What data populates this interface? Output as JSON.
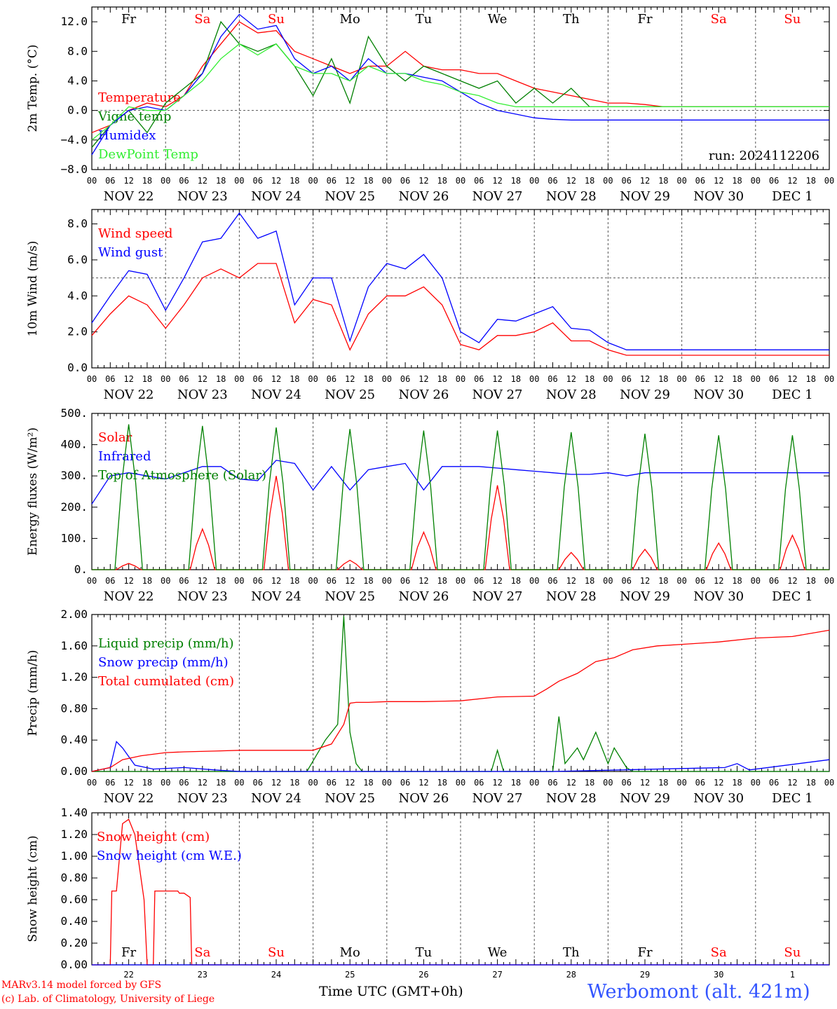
{
  "colors": {
    "red": "#ff0000",
    "green": "#008000",
    "blue": "#0000ff",
    "lightgreen": "#33ee33",
    "dowWeekend": "#ff0000",
    "dowWeekday": "#000000"
  },
  "days_of_week": [
    "Fr",
    "Sa",
    "Su",
    "Mo",
    "Tu",
    "We",
    "Th",
    "Fr",
    "Sa",
    "Su"
  ],
  "weekend_flags": [
    false,
    true,
    true,
    false,
    false,
    false,
    false,
    false,
    true,
    true
  ],
  "date_labels": [
    "NOV 22",
    "NOV 23",
    "NOV 24",
    "NOV 25",
    "NOV 26",
    "NOV 27",
    "NOV 28",
    "NOV 29",
    "NOV 30",
    "DEC  1"
  ],
  "hour_ticks": [
    "00",
    "06",
    "12",
    "18"
  ],
  "last_hour_tick": "00",
  "bottom_day_numbers": [
    "22",
    "23",
    "24",
    "25",
    "26",
    "27",
    "28",
    "29",
    "30",
    "1"
  ],
  "run_label": "run: 2024112206",
  "footer": {
    "model": "MARv3.14 model forced by GFS",
    "lab": "(c) Lab. of Climatology, University of Liege",
    "xaxis": "Time UTC (GMT+0h)",
    "station": "Werbomont (alt. 421m)"
  },
  "chart_data": [
    {
      "type": "line",
      "ylabel": "2m Temp. (°C)",
      "ylim": [
        -8,
        14
      ],
      "yticks": [
        "12.0",
        "8.0",
        "4.0",
        "0.0",
        "−4.0",
        "−8.0"
      ],
      "ytick_values": [
        12,
        8,
        4,
        0,
        -4,
        -8
      ],
      "reference_line": 0,
      "x_unit": "hours since 2024-11-22 00 UTC",
      "series": [
        {
          "name": "Temperature",
          "color": "red",
          "x": [
            0,
            6,
            12,
            18,
            24,
            30,
            36,
            42,
            48,
            54,
            60,
            66,
            72,
            78,
            84,
            90,
            96,
            102,
            108,
            114,
            120,
            126,
            132,
            138,
            144,
            150,
            156,
            162,
            168,
            174,
            180,
            186,
            192,
            198,
            204,
            210,
            216,
            222,
            228,
            234,
            240
          ],
          "values": [
            -3,
            -2,
            0,
            1,
            0.5,
            2,
            6,
            9,
            12,
            10.5,
            10.8,
            8,
            7,
            6,
            5,
            6,
            6,
            8,
            6,
            5.5,
            5.5,
            5,
            5,
            4,
            3,
            2.5,
            2,
            1.5,
            1,
            1,
            0.8,
            0.5,
            0.5,
            0.5,
            0.5,
            0.5,
            0.5,
            0.5,
            0.5,
            0.5,
            0.5
          ]
        },
        {
          "name": "Vigne temp",
          "color": "green",
          "x": [
            0,
            6,
            12,
            18,
            24,
            30,
            36,
            42,
            48,
            54,
            60,
            66,
            72,
            78,
            84,
            90,
            96,
            102,
            108,
            114,
            120,
            126,
            132,
            138,
            144,
            150,
            156,
            162,
            168,
            174,
            180,
            186,
            192,
            198,
            204,
            210,
            216,
            222,
            228,
            234,
            240
          ],
          "values": [
            -5,
            -2,
            0,
            -3,
            1,
            3,
            5,
            12,
            9,
            8,
            9,
            6,
            2,
            7,
            1,
            10,
            6,
            4,
            6,
            5,
            4,
            3,
            4,
            1,
            3,
            1,
            3,
            0.5,
            0.5,
            0.5,
            0.5,
            0.5,
            0.5,
            0.5,
            0.5,
            0.5,
            0.5,
            0.5,
            0.5,
            0.5,
            0.5
          ]
        },
        {
          "name": "Humidex",
          "color": "blue",
          "x": [
            0,
            6,
            12,
            18,
            24,
            30,
            36,
            42,
            48,
            54,
            60,
            66,
            72,
            78,
            84,
            90,
            96,
            102,
            108,
            114,
            120,
            126,
            132,
            138,
            144,
            150,
            156,
            162,
            168,
            174,
            180,
            186,
            192,
            198,
            204,
            210,
            216,
            222,
            228,
            234,
            240
          ],
          "values": [
            -6,
            -2,
            0,
            0.5,
            0,
            2,
            5,
            10,
            13,
            11,
            11.5,
            7,
            5,
            6,
            4,
            7,
            5,
            5,
            4.5,
            4,
            2.5,
            1,
            0,
            -0.5,
            -1,
            -1.2,
            -1.3,
            -1.3,
            -1.3,
            -1.3,
            -1.3,
            -1.3,
            -1.3,
            -1.3,
            -1.3,
            -1.3,
            -1.3,
            -1.3,
            -1.3,
            -1.3,
            -1.3
          ]
        },
        {
          "name": "DewPoint Temp",
          "color": "lightgreen",
          "x": [
            0,
            6,
            12,
            18,
            24,
            30,
            36,
            42,
            48,
            54,
            60,
            66,
            72,
            78,
            84,
            90,
            96,
            102,
            108,
            114,
            120,
            126,
            132,
            138,
            144,
            150,
            156,
            162,
            168,
            174,
            180,
            186,
            192,
            198,
            204,
            210,
            216,
            222,
            228,
            234,
            240
          ],
          "values": [
            -4,
            -2,
            0.5,
            0,
            0,
            2,
            4,
            7,
            9,
            7.5,
            9,
            6,
            5,
            5,
            4,
            6,
            5,
            5,
            4,
            3.5,
            2.5,
            2,
            1,
            0.5,
            0.5,
            0.5,
            0.5,
            0.5,
            0.5,
            0.5,
            0.5,
            0.5,
            0.5,
            0.5,
            0.5,
            0.5,
            0.5,
            0.5,
            0.5,
            0.5,
            0.5
          ]
        }
      ]
    },
    {
      "type": "line",
      "ylabel": "10m Wind (m/s)",
      "ylim": [
        0,
        8.8
      ],
      "yticks": [
        "8.0",
        "6.0",
        "4.0",
        "2.0",
        "0.0"
      ],
      "ytick_values": [
        8,
        6,
        4,
        2,
        0
      ],
      "reference_line": 5,
      "x_unit": "hours since 2024-11-22 00 UTC",
      "series": [
        {
          "name": "Wind speed",
          "color": "red",
          "x": [
            0,
            6,
            12,
            18,
            24,
            30,
            36,
            42,
            48,
            54,
            60,
            66,
            72,
            78,
            84,
            90,
            96,
            102,
            108,
            114,
            120,
            126,
            132,
            138,
            144,
            150,
            156,
            162,
            168,
            174,
            180,
            186,
            192,
            198,
            204,
            210,
            216,
            222,
            228,
            234,
            240
          ],
          "values": [
            1.8,
            3,
            4,
            3.5,
            2.2,
            3.5,
            5,
            5.5,
            5,
            5.8,
            5.8,
            2.5,
            3.8,
            3.5,
            1,
            3,
            4,
            4,
            4.5,
            3.5,
            1.3,
            1,
            1.8,
            1.8,
            2,
            2.5,
            1.5,
            1.5,
            1,
            0.7,
            0.7,
            0.7,
            0.7,
            0.7,
            0.7,
            0.7,
            0.7,
            0.7,
            0.7,
            0.7,
            0.7
          ]
        },
        {
          "name": "Wind gust",
          "color": "blue",
          "x": [
            0,
            6,
            12,
            18,
            24,
            30,
            36,
            42,
            48,
            54,
            60,
            66,
            72,
            78,
            84,
            90,
            96,
            102,
            108,
            114,
            120,
            126,
            132,
            138,
            144,
            150,
            156,
            162,
            168,
            174,
            180,
            186,
            192,
            198,
            204,
            210,
            216,
            222,
            228,
            234,
            240
          ],
          "values": [
            2.5,
            4,
            5.4,
            5.2,
            3.2,
            5,
            7,
            7.2,
            8.6,
            7.2,
            7.6,
            3.5,
            5,
            5,
            1.5,
            4.5,
            5.8,
            5.5,
            6.3,
            5,
            2,
            1.4,
            2.7,
            2.6,
            3,
            3.4,
            2.2,
            2.1,
            1.4,
            1,
            1,
            1,
            1,
            1,
            1,
            1,
            1,
            1,
            1,
            1,
            1
          ]
        }
      ]
    },
    {
      "type": "line",
      "ylabel": "Energy fluxes (W/m²)",
      "ylim": [
        0,
        500
      ],
      "yticks": [
        "500.",
        "400.",
        "300.",
        "200.",
        "100.",
        "0."
      ],
      "ytick_values": [
        500,
        400,
        300,
        200,
        100,
        0
      ],
      "x_unit": "hours since 2024-11-22 00 UTC",
      "series": [
        {
          "name": "Solar",
          "color": "red",
          "peaks_hour": [
            12,
            36,
            60,
            84,
            108,
            132,
            156,
            180,
            204,
            228
          ],
          "peaks": [
            20,
            130,
            300,
            30,
            120,
            270,
            55,
            65,
            85,
            110
          ],
          "halfwidth_h": 4
        },
        {
          "name": "Infrared",
          "color": "blue",
          "x": [
            0,
            6,
            12,
            18,
            24,
            30,
            36,
            42,
            48,
            54,
            60,
            66,
            72,
            78,
            84,
            90,
            96,
            102,
            108,
            114,
            120,
            126,
            132,
            138,
            144,
            150,
            156,
            162,
            168,
            174,
            180,
            186,
            192,
            198,
            204,
            210,
            216,
            222,
            228,
            234,
            240
          ],
          "values": [
            210,
            300,
            310,
            300,
            290,
            310,
            330,
            330,
            290,
            285,
            350,
            340,
            255,
            330,
            255,
            320,
            330,
            340,
            255,
            330,
            330,
            330,
            325,
            320,
            315,
            310,
            305,
            305,
            310,
            300,
            310,
            310,
            310,
            310,
            310,
            310,
            310,
            310,
            310,
            310,
            310
          ]
        },
        {
          "name": "Top of Atmosphere (Solar)",
          "color": "green",
          "peaks_hour": [
            12,
            36,
            60,
            84,
            108,
            132,
            156,
            180,
            204,
            228
          ],
          "peaks": [
            465,
            460,
            455,
            450,
            445,
            445,
            440,
            435,
            430,
            430
          ],
          "halfwidth_h": 4.5
        }
      ]
    },
    {
      "type": "line",
      "ylabel": "Precip (mm/h)",
      "ylim": [
        0,
        2
      ],
      "yticks": [
        "2.00",
        "1.60",
        "1.20",
        "0.80",
        "0.40",
        "0.00"
      ],
      "ytick_values": [
        2,
        1.6,
        1.2,
        0.8,
        0.4,
        0
      ],
      "x_unit": "hours since 2024-11-22 00 UTC",
      "series": [
        {
          "name": "Liquid precip (mm/h)",
          "color": "green",
          "x": [
            0,
            70,
            76,
            80,
            82,
            84,
            86,
            88,
            130,
            132,
            134,
            150,
            152,
            154,
            156,
            158,
            160,
            164,
            168,
            170,
            174,
            176,
            240
          ],
          "values": [
            0,
            0,
            0.4,
            0.6,
            1.98,
            0.5,
            0.1,
            0,
            0,
            0.27,
            0,
            0,
            0.7,
            0.1,
            0.2,
            0.3,
            0.15,
            0.5,
            0.1,
            0.3,
            0.05,
            0,
            0
          ]
        },
        {
          "name": "Snow precip (mm/h)",
          "color": "blue",
          "x": [
            0,
            6,
            8,
            10,
            14,
            20,
            30,
            40,
            48,
            60,
            150,
            206,
            210,
            214,
            240
          ],
          "values": [
            0,
            0.05,
            0.38,
            0.3,
            0.08,
            0.03,
            0.05,
            0.02,
            0,
            0,
            0,
            0.05,
            0.1,
            0.02,
            0.15
          ]
        },
        {
          "name": "Total cumulated (cm)",
          "color": "red",
          "x": [
            0,
            6,
            10,
            16,
            24,
            30,
            40,
            48,
            60,
            72,
            78,
            82,
            84,
            86,
            90,
            96,
            108,
            120,
            132,
            144,
            148,
            152,
            158,
            164,
            170,
            176,
            184,
            192,
            204,
            216,
            228,
            240
          ],
          "values": [
            0,
            0.05,
            0.15,
            0.2,
            0.24,
            0.25,
            0.26,
            0.27,
            0.27,
            0.27,
            0.35,
            0.6,
            0.87,
            0.88,
            0.88,
            0.89,
            0.89,
            0.9,
            0.95,
            0.96,
            1.05,
            1.15,
            1.25,
            1.4,
            1.45,
            1.55,
            1.6,
            1.62,
            1.65,
            1.7,
            1.72,
            1.8
          ]
        }
      ]
    },
    {
      "type": "line",
      "ylabel": "Snow height (cm)",
      "ylim": [
        0,
        1.4
      ],
      "yticks": [
        "1.40",
        "1.20",
        "1.00",
        "0.80",
        "0.60",
        "0.40",
        "0.20",
        "0.00"
      ],
      "ytick_values": [
        1.4,
        1.2,
        1.0,
        0.8,
        0.6,
        0.4,
        0.2,
        0
      ],
      "x_unit": "hours since 2024-11-22 00 UTC",
      "series": [
        {
          "name": "Snow height (cm)",
          "color": "red",
          "x": [
            0,
            6,
            6.5,
            8,
            10,
            12,
            14,
            16,
            17,
            18,
            20,
            20.5,
            28,
            28.5,
            30,
            32,
            32.5,
            240
          ],
          "values": [
            0,
            0,
            0.68,
            0.68,
            1.3,
            1.34,
            1.2,
            0.8,
            0.6,
            0,
            0,
            0.68,
            0.68,
            0.66,
            0.66,
            0.62,
            0,
            0
          ]
        },
        {
          "name": "Snow height (cm W.E.)",
          "color": "blue",
          "x": [
            0,
            240
          ],
          "values": [
            0,
            0
          ]
        }
      ]
    }
  ]
}
